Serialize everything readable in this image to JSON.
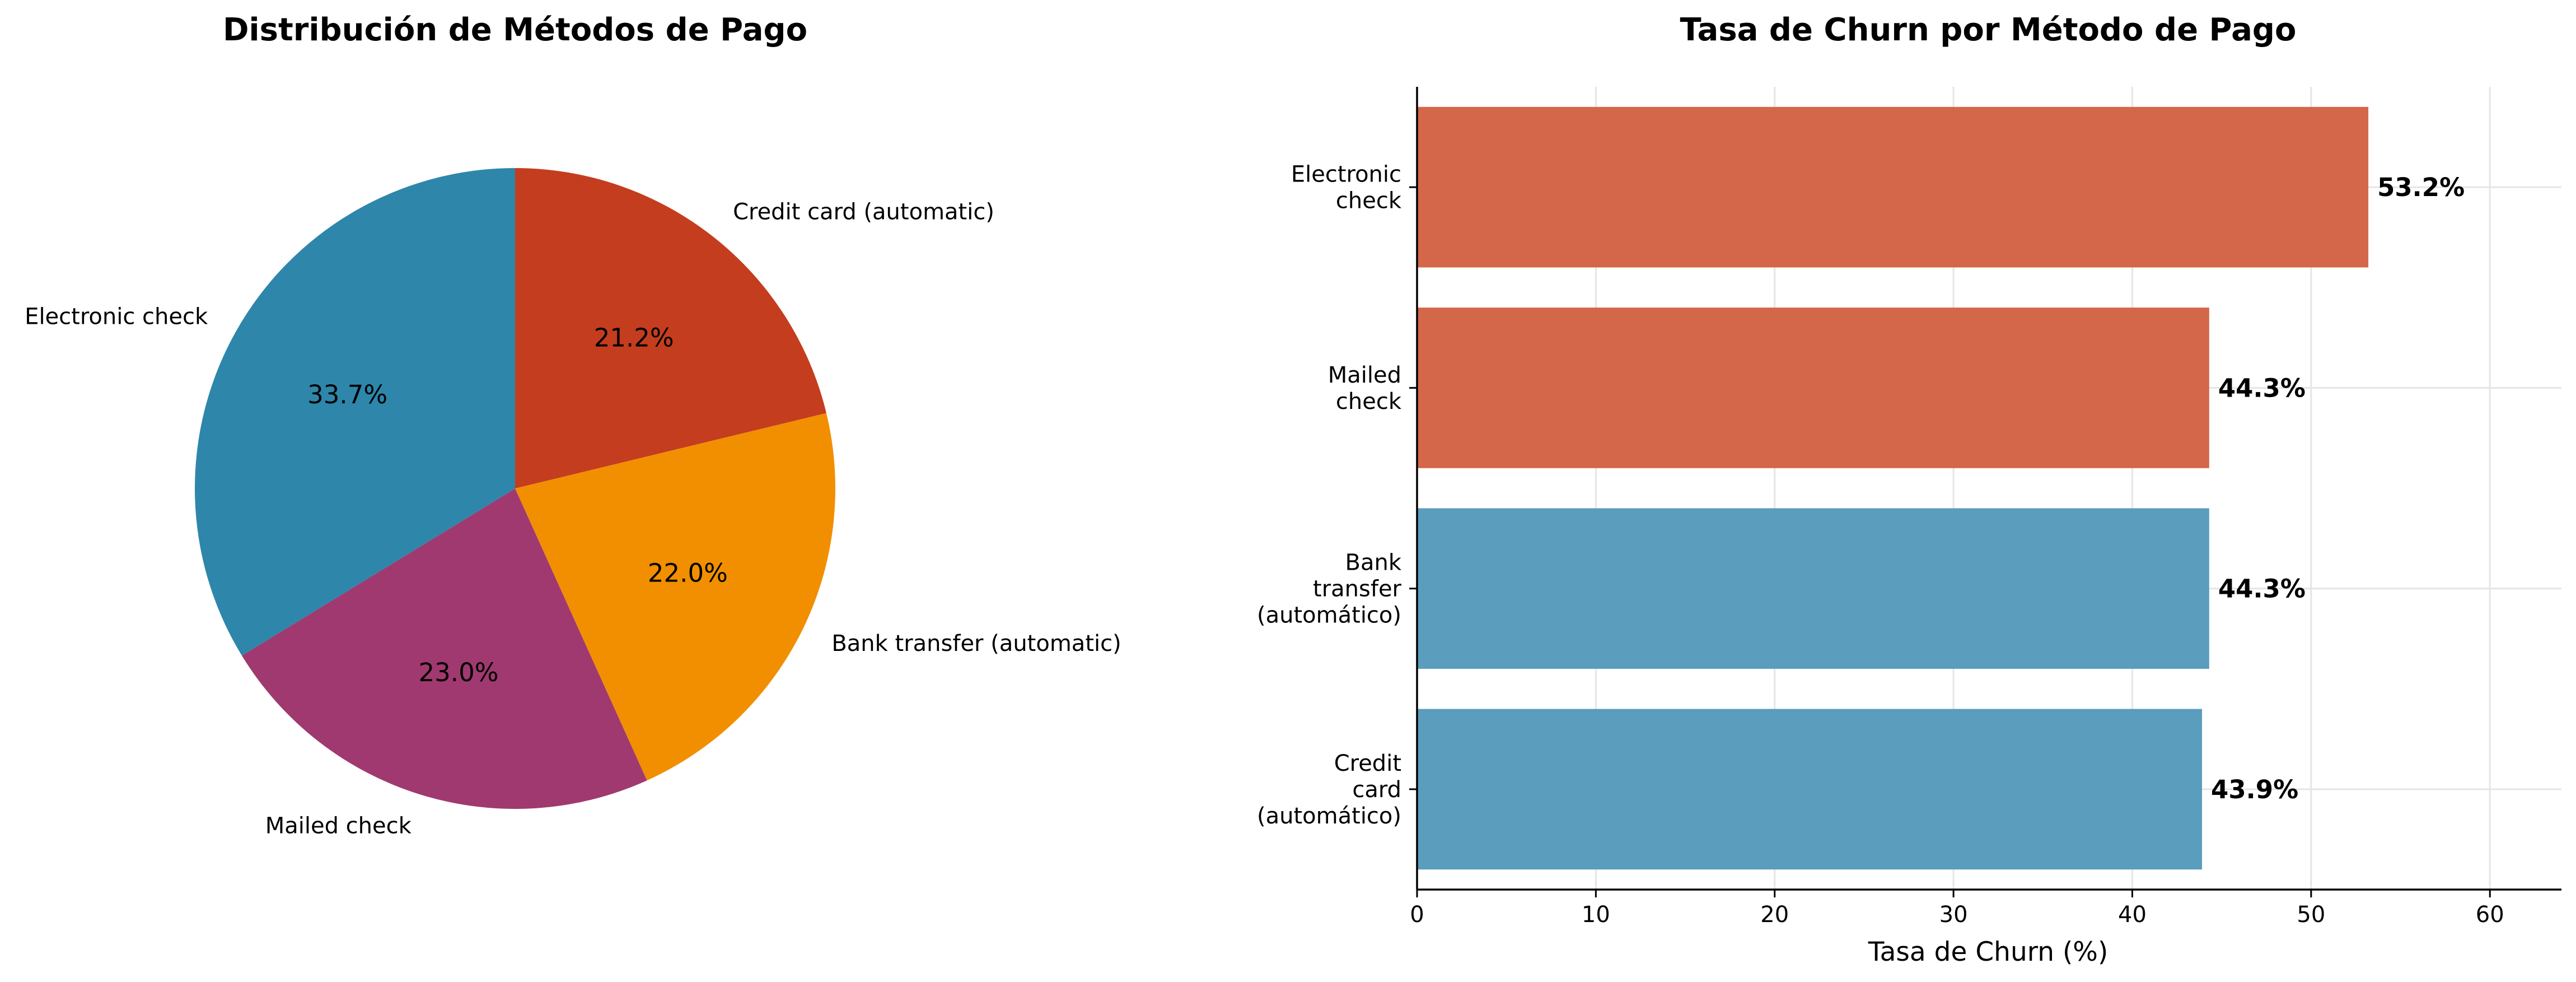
{
  "chart_data": [
    {
      "type": "pie",
      "title": "Distribución de Métodos de Pago",
      "slices": [
        {
          "label": "Credit card (automatic)",
          "value": 21.2,
          "pct_label": "21.2%",
          "color": "#C43D1E"
        },
        {
          "label": "Bank transfer (automatic)",
          "value": 22.0,
          "pct_label": "22.0%",
          "color": "#F18F01"
        },
        {
          "label": "Mailed check",
          "value": 23.0,
          "pct_label": "23.0%",
          "color": "#A0396F"
        },
        {
          "label": "Electronic check",
          "value": 33.7,
          "pct_label": "33.7%",
          "color": "#2E86AB"
        }
      ],
      "start_angle_deg": 90,
      "direction": "clockwise"
    },
    {
      "type": "bar",
      "orientation": "horizontal",
      "title": "Tasa de Churn por Método de Pago",
      "xlabel": "Tasa de Churn (%)",
      "ylabel": "",
      "xlim": [
        0,
        64
      ],
      "xticks": [
        0,
        10,
        20,
        30,
        40,
        50,
        60
      ],
      "grid": true,
      "categories": [
        {
          "lines": [
            "Electronic",
            "check"
          ],
          "value": 53.2,
          "value_label": "53.2%",
          "color": "#D4664A"
        },
        {
          "lines": [
            "Mailed",
            "check"
          ],
          "value": 44.3,
          "value_label": "44.3%",
          "color": "#D4664A"
        },
        {
          "lines": [
            "Bank",
            "transfer",
            "(automático)"
          ],
          "value": 44.3,
          "value_label": "44.3%",
          "color": "#5A9DBD"
        },
        {
          "lines": [
            "Credit",
            "card",
            "(automático)"
          ],
          "value": 43.9,
          "value_label": "43.9%",
          "color": "#5A9DBD"
        }
      ]
    }
  ]
}
